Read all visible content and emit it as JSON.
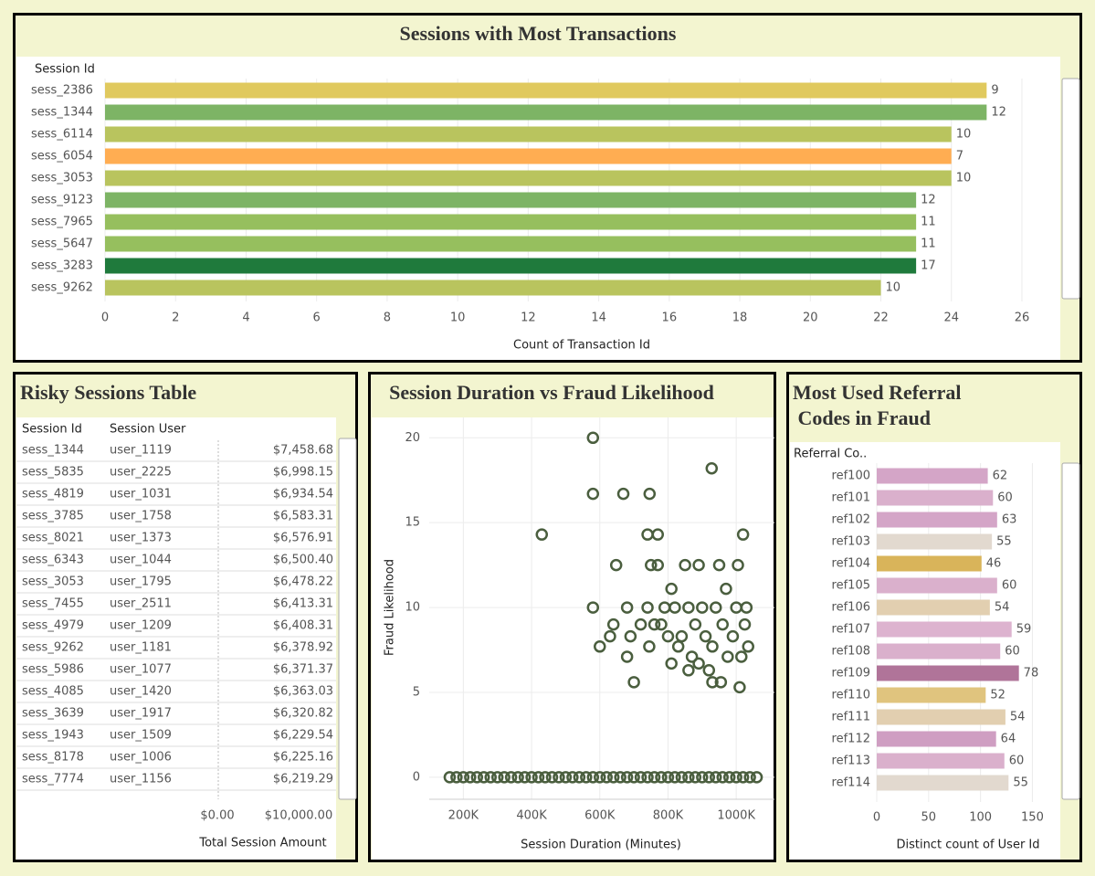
{
  "chart_data": [
    {
      "type": "hbar",
      "title": "Sessions with Most Transactions",
      "y_label": "Session Id",
      "x_label": "Count of Transaction Id",
      "categories": [
        "sess_2386",
        "sess_1344",
        "sess_6114",
        "sess_6054",
        "sess_3053",
        "sess_9123",
        "sess_7965",
        "sess_5647",
        "sess_3283",
        "sess_9262"
      ],
      "values": [
        25,
        25,
        24,
        24,
        24,
        23,
        23,
        23,
        23,
        22
      ],
      "label_values": [
        9,
        12,
        10,
        7,
        10,
        12,
        11,
        11,
        17,
        10
      ],
      "colors": [
        "#e0c95e",
        "#7db465",
        "#b9c45e",
        "#ffad52",
        "#b9c45e",
        "#7db465",
        "#96bf5e",
        "#96bf5e",
        "#1f7a3c",
        "#b9c45e"
      ],
      "xlim": [
        0,
        26.7
      ],
      "xticks": [
        0,
        2,
        4,
        6,
        8,
        10,
        12,
        14,
        16,
        18,
        20,
        22,
        24,
        26
      ],
      "grid": true
    },
    {
      "type": "table",
      "title": "Risky Sessions Table",
      "columns": [
        "Session Id",
        "Session User"
      ],
      "rows": [
        [
          "sess_1344",
          "user_1119",
          "$7,458.68"
        ],
        [
          "sess_5835",
          "user_2225",
          "$6,998.15"
        ],
        [
          "sess_4819",
          "user_1031",
          "$6,934.54"
        ],
        [
          "sess_3785",
          "user_1758",
          "$6,583.31"
        ],
        [
          "sess_8021",
          "user_1373",
          "$6,576.91"
        ],
        [
          "sess_6343",
          "user_1044",
          "$6,500.40"
        ],
        [
          "sess_3053",
          "user_1795",
          "$6,478.22"
        ],
        [
          "sess_7455",
          "user_2511",
          "$6,413.31"
        ],
        [
          "sess_4979",
          "user_1209",
          "$6,408.31"
        ],
        [
          "sess_9262",
          "user_1181",
          "$6,378.92"
        ],
        [
          "sess_5986",
          "user_1077",
          "$6,371.37"
        ],
        [
          "sess_4085",
          "user_1420",
          "$6,363.03"
        ],
        [
          "sess_3639",
          "user_1917",
          "$6,320.82"
        ],
        [
          "sess_1943",
          "user_1509",
          "$6,229.54"
        ],
        [
          "sess_8178",
          "user_1006",
          "$6,225.16"
        ],
        [
          "sess_7774",
          "user_1156",
          "$6,219.29"
        ]
      ],
      "axis_ticks": [
        "$0.00",
        "$10,000.00"
      ],
      "axis_label": "Total Session Amount"
    },
    {
      "type": "scatter",
      "title": "Session Duration vs Fraud Likelihood",
      "x_label": "Session Duration (Minutes)",
      "y_label": "Fraud Likelihood",
      "color": "#4a5e3e",
      "x": [
        430000,
        580000,
        580000,
        669000,
        746000,
        928000,
        580000,
        600000,
        630000,
        640000,
        648000,
        680000,
        680000,
        690000,
        700000,
        720000,
        740000,
        740000,
        745000,
        750000,
        760000,
        770000,
        770000,
        780000,
        790000,
        800000,
        810000,
        820000,
        830000,
        840000,
        850000,
        860000,
        870000,
        880000,
        890000,
        890000,
        900000,
        910000,
        920000,
        930000,
        940000,
        950000,
        955000,
        960000,
        970000,
        975000,
        990000,
        1000000,
        1005000,
        1010000,
        1015000,
        1020000,
        1025000,
        1030000,
        1035000,
        860000,
        930000,
        810000,
        160000,
        180000,
        200000,
        220000,
        240000,
        260000,
        280000,
        300000,
        320000,
        340000,
        360000,
        380000,
        400000,
        420000,
        440000,
        460000,
        480000,
        500000,
        520000,
        540000,
        560000,
        580000,
        600000,
        620000,
        640000,
        660000,
        680000,
        700000,
        720000,
        740000,
        760000,
        780000,
        800000,
        820000,
        840000,
        860000,
        880000,
        900000,
        920000,
        940000,
        960000,
        980000,
        1000000,
        1020000,
        1040000,
        1060000
      ],
      "y": [
        14.3,
        20,
        16.7,
        16.7,
        16.7,
        18.2,
        10,
        7.7,
        8.3,
        9,
        12.5,
        10,
        7.1,
        8.3,
        5.6,
        9,
        14.3,
        10,
        7.7,
        12.5,
        9,
        14.3,
        12.5,
        9,
        10,
        8.3,
        11.1,
        10,
        7.7,
        8.3,
        12.5,
        10,
        7.1,
        9,
        12.5,
        6.7,
        10,
        8.3,
        6.3,
        7.7,
        10,
        12.5,
        5.6,
        9,
        11.1,
        7.1,
        8.3,
        10,
        12.5,
        5.3,
        7.1,
        14.3,
        9,
        10,
        7.7,
        6.3,
        5.6,
        6.7,
        0,
        0,
        0,
        0,
        0,
        0,
        0,
        0,
        0,
        0,
        0,
        0,
        0,
        0,
        0,
        0,
        0,
        0,
        0,
        0,
        0,
        0,
        0,
        0,
        0,
        0,
        0,
        0,
        0,
        0,
        0,
        0,
        0,
        0,
        0,
        0,
        0,
        0,
        0,
        0,
        0,
        0,
        0,
        0,
        0,
        0
      ],
      "xlim": [
        100000,
        1112000
      ],
      "ylim": [
        -1.3,
        21.2
      ],
      "xticks": [
        {
          "value": 200000,
          "label": "200K"
        },
        {
          "value": 400000,
          "label": "400K"
        },
        {
          "value": 600000,
          "label": "600K"
        },
        {
          "value": 800000,
          "label": "800K"
        },
        {
          "value": 1000000,
          "label": "1000K"
        }
      ],
      "yticks": [
        0,
        5,
        10,
        15,
        20
      ],
      "grid": true
    },
    {
      "type": "hbar",
      "title": "Most Used Referral Codes in Fraud",
      "y_label": "Referral Co..",
      "x_label": "Distinct count of User Id",
      "categories": [
        "ref100",
        "ref101",
        "ref102",
        "ref103",
        "ref104",
        "ref105",
        "ref106",
        "ref107",
        "ref108",
        "ref109",
        "ref110",
        "ref111",
        "ref112",
        "ref113",
        "ref114"
      ],
      "values": [
        107,
        112,
        116,
        111,
        101,
        116,
        109,
        130,
        119,
        137,
        105,
        124,
        115,
        123,
        127
      ],
      "label_values": [
        62,
        60,
        63,
        55,
        46,
        60,
        54,
        59,
        60,
        78,
        52,
        54,
        64,
        60,
        55
      ],
      "colors": [
        "#d4a5c7",
        "#dab0cc",
        "#d4a5c7",
        "#e2d9cf",
        "#d9b45a",
        "#dab0cc",
        "#e2cfb0",
        "#ddb3cf",
        "#dab0cc",
        "#b07499",
        "#e0c47e",
        "#e2cfb0",
        "#cf9ec2",
        "#dab0cc",
        "#e2d9cf"
      ],
      "xlim": [
        0,
        176
      ],
      "xticks": [
        0,
        50,
        100,
        150
      ],
      "grid": true
    }
  ]
}
